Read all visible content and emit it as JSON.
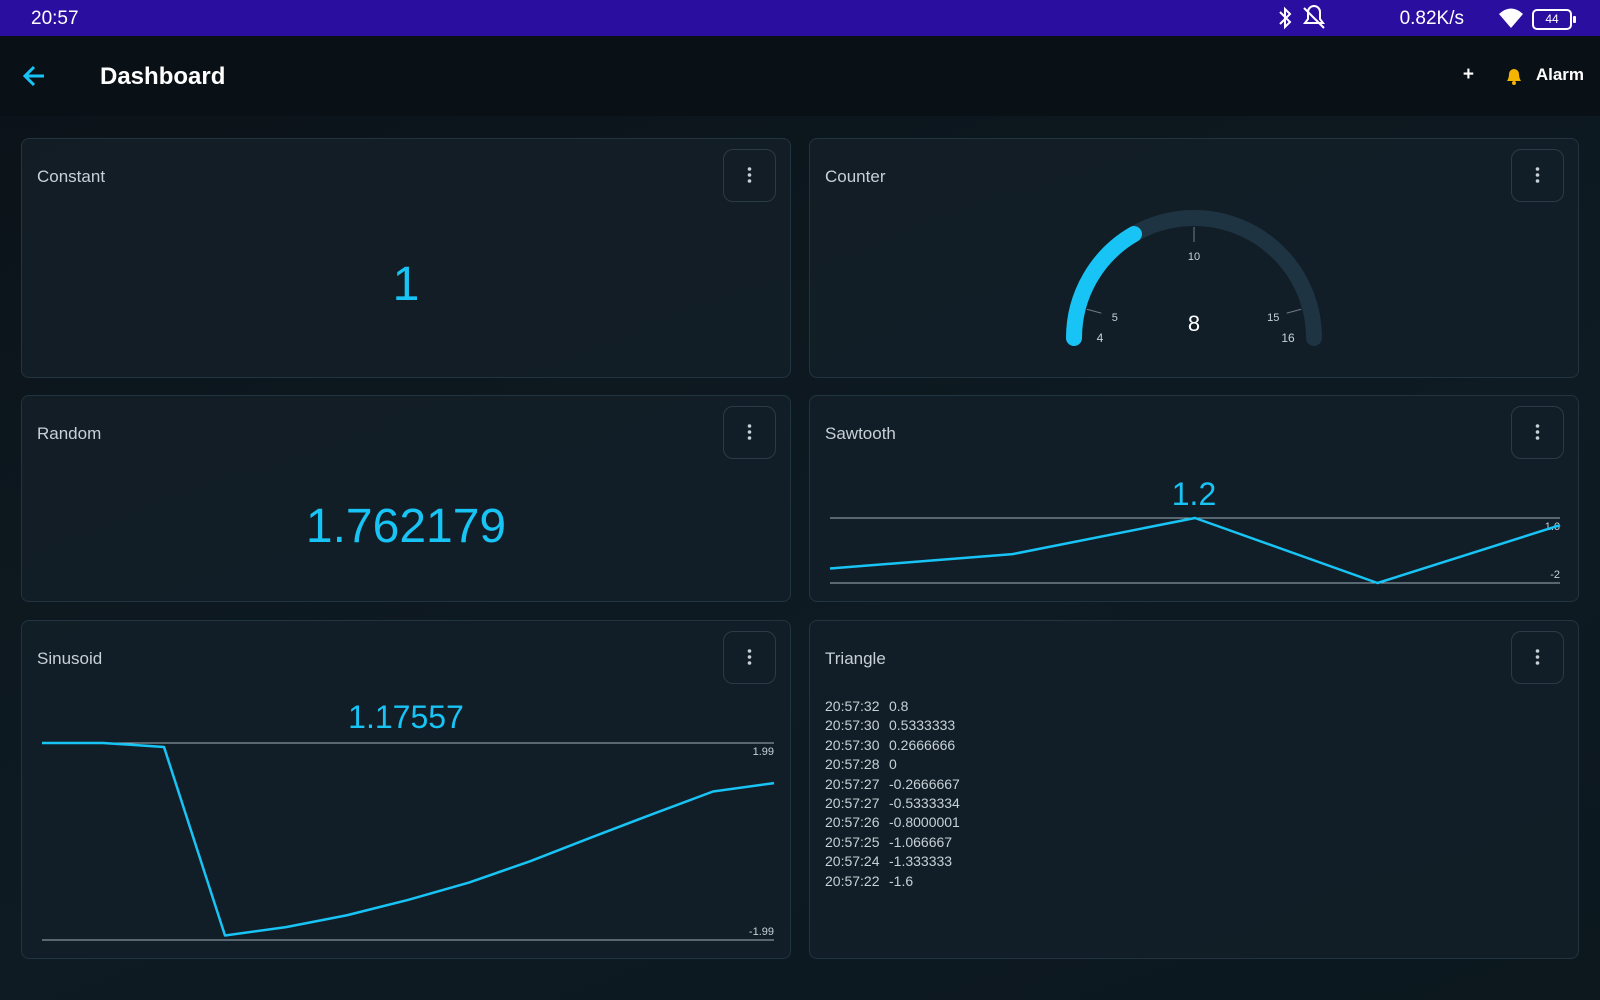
{
  "status": {
    "time": "20:57",
    "speed": "0.82K/s",
    "battery": "44"
  },
  "header": {
    "title": "Dashboard",
    "add": "+",
    "alarm": "Alarm"
  },
  "widgets": [
    {
      "title": "Constant",
      "value": 1
    },
    {
      "title": "Counter",
      "value": 8,
      "min": 4,
      "max": 16,
      "ticks": [
        5,
        10,
        15
      ]
    },
    {
      "title": "Random",
      "value": 1.762179
    },
    {
      "title": "Sawtooth",
      "value": 1.2,
      "ylim": [
        -2,
        1.6
      ],
      "yticks": [
        -2,
        1.6
      ],
      "values": [
        -1.2,
        -0.4,
        1.6,
        -2,
        1.2
      ]
    },
    {
      "title": "Sinusoid",
      "value": 1.17557,
      "ylim": [
        -1.99,
        1.99
      ],
      "yticks": [
        -1.99,
        1.99
      ],
      "values": [
        1.99,
        1.99,
        1.91,
        -1.9,
        -1.73,
        -1.49,
        -1.18,
        -0.83,
        -0.4,
        0.08,
        0.55,
        1.01,
        1.18
      ]
    },
    {
      "title": "Triangle",
      "rows": [
        [
          "20:57:32",
          0.8
        ],
        [
          "20:57:30",
          0.5333333
        ],
        [
          "20:57:30",
          0.2666666
        ],
        [
          "20:57:28",
          0
        ],
        [
          "20:57:27",
          -0.2666667
        ],
        [
          "20:57:27",
          -0.5333334
        ],
        [
          "20:57:26",
          -0.8000001
        ],
        [
          "20:57:25",
          -1.066667
        ],
        [
          "20:57:24",
          -1.333333
        ],
        [
          "20:57:22",
          -1.6
        ]
      ]
    }
  ]
}
